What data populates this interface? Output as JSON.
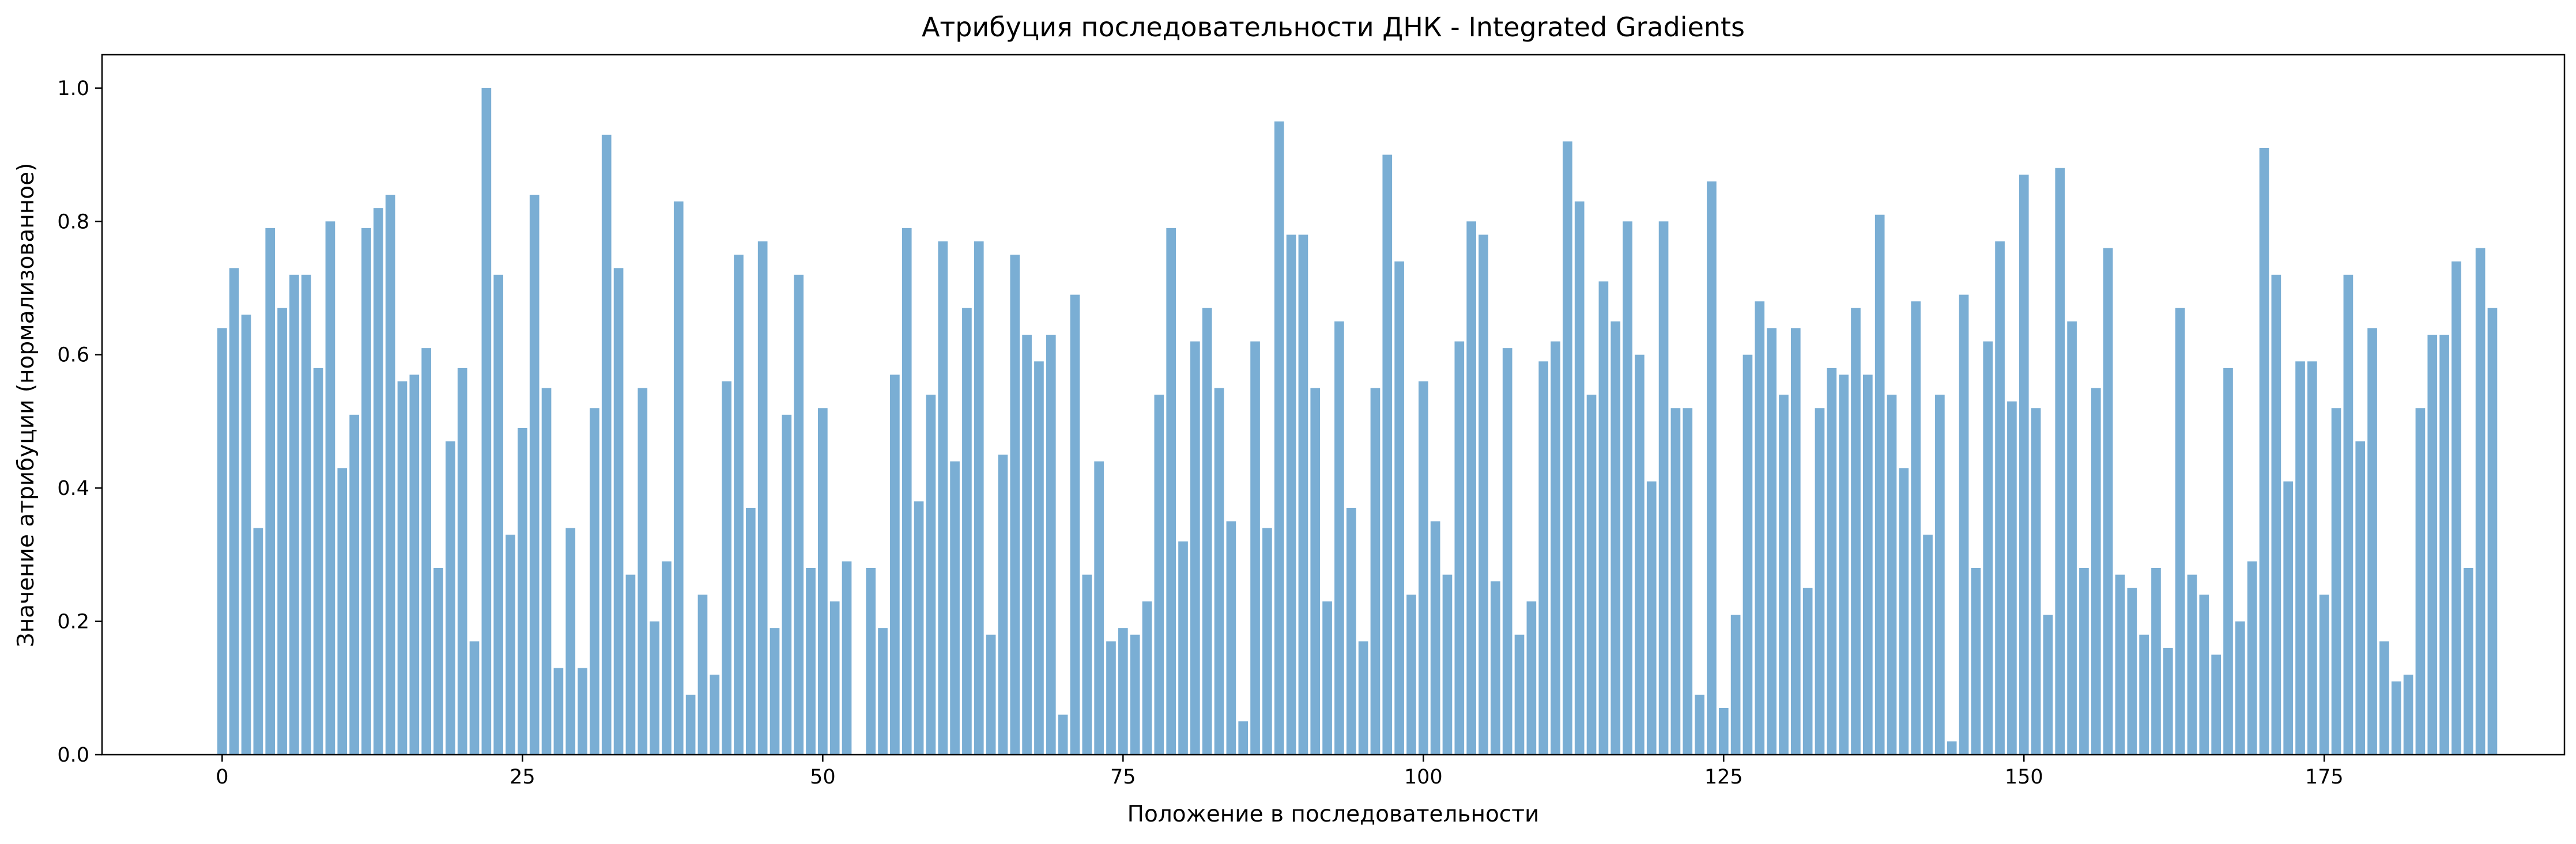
{
  "chart_data": {
    "type": "bar",
    "title": "Атрибуция последовательности ДНК - Integrated Gradients",
    "xlabel": "Положение в последовательности",
    "ylabel": "Значение атрибуции (нормализованное)",
    "xlim": [
      -10,
      195
    ],
    "ylim": [
      0,
      1.05
    ],
    "xticks": [
      0,
      25,
      50,
      75,
      100,
      125,
      150,
      175
    ],
    "yticks": [
      0.0,
      0.2,
      0.4,
      0.6,
      0.8,
      1.0
    ],
    "xtick_labels": [
      "0",
      "25",
      "50",
      "75",
      "100",
      "125",
      "150",
      "175"
    ],
    "ytick_labels": [
      "0.0",
      "0.2",
      "0.4",
      "0.6",
      "0.8",
      "1.0"
    ],
    "grid": false,
    "bar_color": "#7aaed4",
    "x": [
      0,
      1,
      2,
      3,
      4,
      5,
      6,
      7,
      8,
      9,
      10,
      11,
      12,
      13,
      14,
      15,
      16,
      17,
      18,
      19,
      20,
      21,
      22,
      23,
      24,
      25,
      26,
      27,
      28,
      29,
      30,
      31,
      32,
      33,
      34,
      35,
      36,
      37,
      38,
      39,
      40,
      41,
      42,
      43,
      44,
      45,
      46,
      47,
      48,
      49,
      50,
      51,
      52,
      53,
      54,
      55,
      56,
      57,
      58,
      59,
      60,
      61,
      62,
      63,
      64,
      65,
      66,
      67,
      68,
      69,
      70,
      71,
      72,
      73,
      74,
      75,
      76,
      77,
      78,
      79,
      80,
      81,
      82,
      83,
      84,
      85,
      86,
      87,
      88,
      89,
      90,
      91,
      92,
      93,
      94,
      95,
      96,
      97,
      98,
      99,
      100,
      101,
      102,
      103,
      104,
      105,
      106,
      107,
      108,
      109,
      110,
      111,
      112,
      113,
      114,
      115,
      116,
      117,
      118,
      119,
      120,
      121,
      122,
      123,
      124,
      125,
      126,
      127,
      128,
      129,
      130,
      131,
      132,
      133,
      134,
      135,
      136,
      137,
      138,
      139,
      140,
      141,
      142,
      143,
      144,
      145,
      146,
      147,
      148,
      149,
      150,
      151,
      152,
      153,
      154,
      155,
      156,
      157,
      158,
      159,
      160,
      161,
      162,
      163,
      164,
      165,
      166,
      167,
      168,
      169,
      170,
      171,
      172,
      173,
      174,
      175,
      176,
      177,
      178,
      179,
      180,
      181,
      182,
      183,
      184,
      185,
      186,
      187,
      188,
      189
    ],
    "values": [
      0.64,
      0.73,
      0.66,
      0.34,
      0.79,
      0.67,
      0.72,
      0.72,
      0.58,
      0.8,
      0.43,
      0.51,
      0.79,
      0.82,
      0.84,
      0.56,
      0.57,
      0.61,
      0.28,
      0.47,
      0.58,
      0.17,
      1.0,
      0.72,
      0.33,
      0.49,
      0.84,
      0.55,
      0.13,
      0.34,
      0.13,
      0.52,
      0.93,
      0.73,
      0.27,
      0.55,
      0.2,
      0.29,
      0.83,
      0.09,
      0.24,
      0.12,
      0.56,
      0.75,
      0.37,
      0.77,
      0.19,
      0.51,
      0.72,
      0.28,
      0.52,
      0.23,
      0.29,
      0.0,
      0.28,
      0.19,
      0.57,
      0.79,
      0.38,
      0.54,
      0.77,
      0.44,
      0.67,
      0.77,
      0.18,
      0.45,
      0.75,
      0.63,
      0.59,
      0.63,
      0.06,
      0.69,
      0.27,
      0.44,
      0.17,
      0.19,
      0.18,
      0.23,
      0.54,
      0.79,
      0.32,
      0.62,
      0.67,
      0.55,
      0.35,
      0.05,
      0.62,
      0.34,
      0.95,
      0.78,
      0.78,
      0.55,
      0.23,
      0.65,
      0.37,
      0.17,
      0.55,
      0.9,
      0.74,
      0.24,
      0.56,
      0.35,
      0.27,
      0.62,
      0.8,
      0.78,
      0.26,
      0.61,
      0.18,
      0.23,
      0.59,
      0.62,
      0.92,
      0.83,
      0.54,
      0.71,
      0.65,
      0.8,
      0.6,
      0.41,
      0.8,
      0.52,
      0.52,
      0.09,
      0.86,
      0.07,
      0.21,
      0.6,
      0.68,
      0.64,
      0.54,
      0.64,
      0.25,
      0.52,
      0.58,
      0.57,
      0.67,
      0.57,
      0.81,
      0.54,
      0.43,
      0.68,
      0.33,
      0.54,
      0.02,
      0.69,
      0.28,
      0.62,
      0.77,
      0.53,
      0.87,
      0.52,
      0.21,
      0.88,
      0.65,
      0.28,
      0.55,
      0.76,
      0.27,
      0.25,
      0.18,
      0.28,
      0.16,
      0.67,
      0.27,
      0.24,
      0.15,
      0.58,
      0.2,
      0.29,
      0.91,
      0.72,
      0.41,
      0.59,
      0.59,
      0.24,
      0.52,
      0.72,
      0.47,
      0.64,
      0.17,
      0.11,
      0.12,
      0.52,
      0.63,
      0.63,
      0.74,
      0.28,
      0.76,
      0.67
    ]
  }
}
